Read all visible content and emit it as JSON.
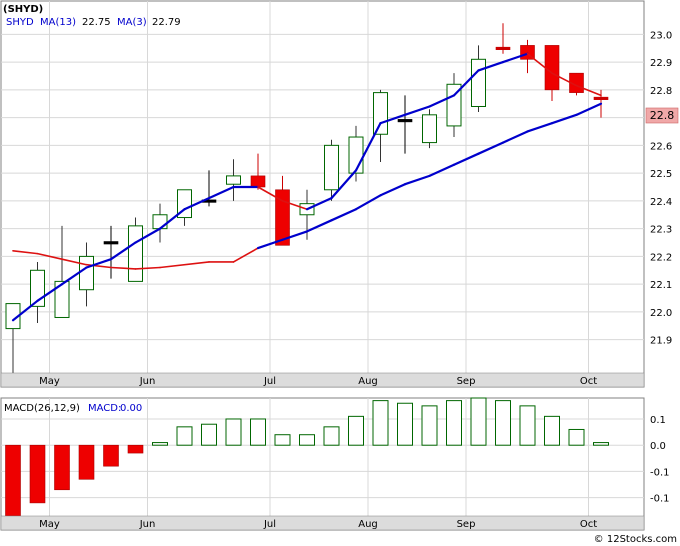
{
  "chart_data": [
    {
      "type": "candlestick",
      "symbol": "(SHYD)",
      "legend": [
        {
          "label": "MA(13)",
          "value": "22.75"
        },
        {
          "label": "MA(3)",
          "value": "22.79"
        }
      ],
      "x_labels": [
        "May",
        "Jun",
        "Jul",
        "Aug",
        "Sep",
        "Oct"
      ],
      "y_ticks": [
        "23.0",
        "22.9",
        "22.8",
        "22.7",
        "22.6",
        "22.5",
        "22.4",
        "22.3",
        "22.2",
        "22.1",
        "22.0",
        "21.9"
      ],
      "ylim": [
        21.78,
        23.12
      ],
      "last_price": "22.8",
      "candles": [
        {
          "open": 21.94,
          "close": 22.03,
          "high": 22.03,
          "low": 21.78,
          "dir": "up"
        },
        {
          "open": 22.02,
          "close": 22.15,
          "high": 22.18,
          "low": 21.96,
          "dir": "up"
        },
        {
          "open": 21.98,
          "close": 22.11,
          "high": 22.31,
          "low": 21.98,
          "dir": "up"
        },
        {
          "open": 22.08,
          "close": 22.2,
          "high": 22.25,
          "low": 22.02,
          "dir": "up"
        },
        {
          "open": 22.25,
          "close": 22.25,
          "high": 22.31,
          "low": 22.12,
          "dir": "doji"
        },
        {
          "open": 22.11,
          "close": 22.31,
          "high": 22.34,
          "low": 22.11,
          "dir": "up"
        },
        {
          "open": 22.3,
          "close": 22.35,
          "high": 22.39,
          "low": 22.25,
          "dir": "up"
        },
        {
          "open": 22.34,
          "close": 22.44,
          "high": 22.44,
          "low": 22.31,
          "dir": "up"
        },
        {
          "open": 22.4,
          "close": 22.4,
          "high": 22.51,
          "low": 22.38,
          "dir": "doji"
        },
        {
          "open": 22.46,
          "close": 22.49,
          "high": 22.55,
          "low": 22.4,
          "dir": "up"
        },
        {
          "open": 22.49,
          "close": 22.45,
          "high": 22.57,
          "low": 22.44,
          "dir": "down"
        },
        {
          "open": 22.44,
          "close": 22.24,
          "high": 22.49,
          "low": 22.24,
          "dir": "down"
        },
        {
          "open": 22.35,
          "close": 22.39,
          "high": 22.44,
          "low": 22.26,
          "dir": "up"
        },
        {
          "open": 22.44,
          "close": 22.6,
          "high": 22.62,
          "low": 22.4,
          "dir": "up"
        },
        {
          "open": 22.5,
          "close": 22.63,
          "high": 22.67,
          "low": 22.47,
          "dir": "up"
        },
        {
          "open": 22.64,
          "close": 22.79,
          "high": 22.8,
          "low": 22.54,
          "dir": "up"
        },
        {
          "open": 22.69,
          "close": 22.69,
          "high": 22.78,
          "low": 22.57,
          "dir": "doji"
        },
        {
          "open": 22.61,
          "close": 22.71,
          "high": 22.73,
          "low": 22.59,
          "dir": "up"
        },
        {
          "open": 22.67,
          "close": 22.82,
          "high": 22.86,
          "low": 22.63,
          "dir": "up"
        },
        {
          "open": 22.74,
          "close": 22.91,
          "high": 22.96,
          "low": 22.72,
          "dir": "up"
        },
        {
          "open": 22.95,
          "close": 22.95,
          "high": 23.04,
          "low": 22.93,
          "dir": "doji_down"
        },
        {
          "open": 22.96,
          "close": 22.91,
          "high": 22.98,
          "low": 22.86,
          "dir": "down"
        },
        {
          "open": 22.96,
          "close": 22.8,
          "high": 22.96,
          "low": 22.76,
          "dir": "down"
        },
        {
          "open": 22.86,
          "close": 22.79,
          "high": 22.86,
          "low": 22.78,
          "dir": "down"
        },
        {
          "open": 22.77,
          "close": 22.77,
          "high": 22.8,
          "low": 22.7,
          "dir": "doji_down"
        }
      ],
      "ma13": [
        21.97,
        22.04,
        22.1,
        22.16,
        22.19,
        22.25,
        22.3,
        22.37,
        22.41,
        22.45,
        22.45,
        22.4,
        22.37,
        22.41,
        22.51,
        22.68,
        22.71,
        22.74,
        22.78,
        22.87,
        22.9,
        22.93,
        22.86
      ],
      "ma13_colors": [
        "blue",
        "blue",
        "blue",
        "blue",
        "blue",
        "blue",
        "blue",
        "blue",
        "blue",
        "blue",
        "red",
        "red",
        "blue",
        "blue",
        "blue",
        "blue",
        "blue",
        "blue",
        "blue",
        "blue",
        "blue",
        "red",
        "red"
      ],
      "ma3_points": [
        [
          0,
          22.22
        ],
        [
          1,
          22.21
        ],
        [
          2,
          22.19
        ],
        [
          3,
          22.17
        ],
        [
          4,
          22.16
        ],
        [
          5,
          22.155
        ],
        [
          6,
          22.16
        ],
        [
          8,
          22.18
        ],
        [
          9,
          22.18
        ],
        [
          10,
          22.23
        ],
        [
          11,
          22.26
        ],
        [
          12,
          22.29
        ],
        [
          13,
          22.33
        ],
        [
          14,
          22.37
        ],
        [
          15,
          22.42
        ],
        [
          16,
          22.46
        ],
        [
          17,
          22.49
        ],
        [
          18,
          22.53
        ],
        [
          19,
          22.57
        ],
        [
          20,
          22.61
        ],
        [
          21,
          22.65
        ],
        [
          22,
          22.68
        ],
        [
          23,
          22.71
        ],
        [
          24,
          22.75
        ]
      ],
      "ma3_series_start_red": true
    },
    {
      "type": "bar",
      "title": "MACD(26,12,9)",
      "macd_label": "MACD:",
      "macd_value": "0.00",
      "x_labels": [
        "May",
        "Jun",
        "Jul",
        "Aug",
        "Sep",
        "Oct"
      ],
      "y_ticks": [
        "0.1",
        "0.0",
        "-0.1",
        "-0.1"
      ],
      "ylim": [
        -0.27,
        0.18
      ],
      "values": [
        -0.27,
        -0.22,
        -0.17,
        -0.13,
        -0.08,
        -0.03,
        0.01,
        0.07,
        0.08,
        0.1,
        0.1,
        0.04,
        0.04,
        0.07,
        0.11,
        0.17,
        0.16,
        0.15,
        0.17,
        0.18,
        0.17,
        0.15,
        0.11,
        0.06,
        0.01
      ]
    }
  ]
}
